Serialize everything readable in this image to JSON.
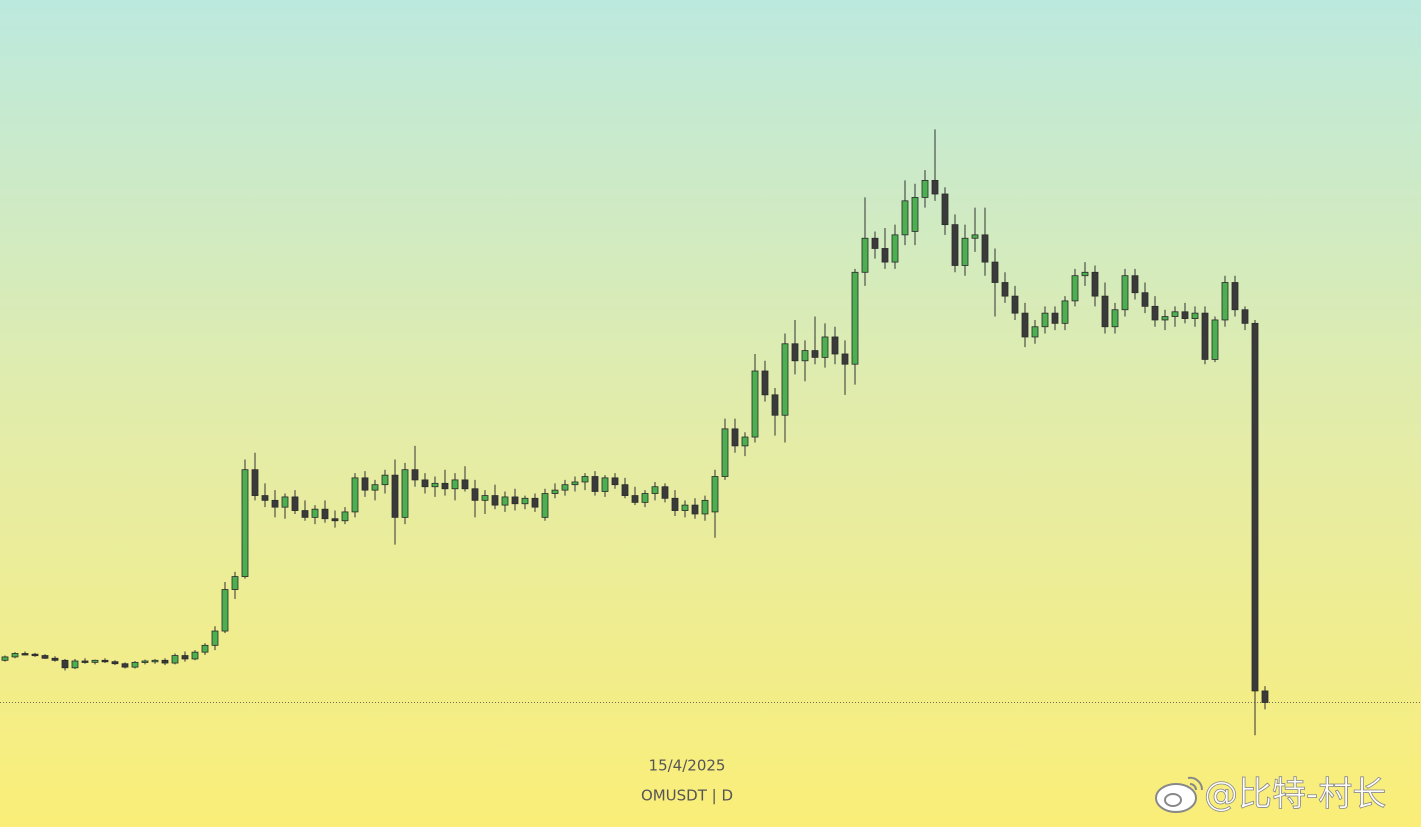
{
  "chart_data": {
    "type": "candlestick",
    "ylim": [
      0,
      10.9
    ],
    "up_color": "#4caf50",
    "down_color": "#3a3a3a",
    "date_label": "15/4/2025",
    "symbol_label": "OMUSDT | D",
    "watermark": "@比特-村长",
    "ohlc": [
      [
        1.2,
        1.27,
        1.18,
        1.25
      ],
      [
        1.25,
        1.32,
        1.23,
        1.3
      ],
      [
        1.3,
        1.33,
        1.27,
        1.29
      ],
      [
        1.29,
        1.31,
        1.25,
        1.27
      ],
      [
        1.27,
        1.29,
        1.22,
        1.23
      ],
      [
        1.23,
        1.26,
        1.18,
        1.2
      ],
      [
        1.2,
        1.22,
        1.05,
        1.09
      ],
      [
        1.09,
        1.22,
        1.07,
        1.19
      ],
      [
        1.19,
        1.23,
        1.15,
        1.17
      ],
      [
        1.17,
        1.21,
        1.14,
        1.2
      ],
      [
        1.2,
        1.23,
        1.16,
        1.18
      ],
      [
        1.18,
        1.2,
        1.13,
        1.15
      ],
      [
        1.15,
        1.17,
        1.08,
        1.1
      ],
      [
        1.1,
        1.19,
        1.08,
        1.17
      ],
      [
        1.17,
        1.21,
        1.14,
        1.19
      ],
      [
        1.19,
        1.22,
        1.15,
        1.2
      ],
      [
        1.2,
        1.23,
        1.13,
        1.16
      ],
      [
        1.16,
        1.3,
        1.14,
        1.27
      ],
      [
        1.27,
        1.33,
        1.18,
        1.22
      ],
      [
        1.22,
        1.35,
        1.2,
        1.32
      ],
      [
        1.32,
        1.45,
        1.28,
        1.42
      ],
      [
        1.42,
        1.7,
        1.35,
        1.63
      ],
      [
        1.63,
        2.35,
        1.6,
        2.24
      ],
      [
        2.24,
        2.5,
        2.1,
        2.43
      ],
      [
        2.43,
        4.15,
        2.4,
        4.0
      ],
      [
        4.0,
        4.25,
        3.55,
        3.62
      ],
      [
        3.62,
        3.8,
        3.45,
        3.55
      ],
      [
        3.55,
        3.7,
        3.3,
        3.45
      ],
      [
        3.45,
        3.65,
        3.28,
        3.6
      ],
      [
        3.6,
        3.7,
        3.35,
        3.4
      ],
      [
        3.4,
        3.55,
        3.25,
        3.3
      ],
      [
        3.3,
        3.48,
        3.2,
        3.42
      ],
      [
        3.42,
        3.55,
        3.22,
        3.28
      ],
      [
        3.28,
        3.4,
        3.15,
        3.25
      ],
      [
        3.25,
        3.45,
        3.2,
        3.38
      ],
      [
        3.38,
        3.95,
        3.3,
        3.88
      ],
      [
        3.88,
        3.98,
        3.6,
        3.7
      ],
      [
        3.7,
        3.85,
        3.55,
        3.78
      ],
      [
        3.78,
        4.0,
        3.65,
        3.92
      ],
      [
        3.92,
        4.15,
        2.9,
        3.3
      ],
      [
        3.3,
        4.1,
        3.2,
        4.0
      ],
      [
        4.0,
        4.35,
        3.75,
        3.85
      ],
      [
        3.85,
        3.95,
        3.65,
        3.75
      ],
      [
        3.75,
        3.9,
        3.6,
        3.8
      ],
      [
        3.8,
        4.0,
        3.62,
        3.72
      ],
      [
        3.72,
        3.95,
        3.55,
        3.85
      ],
      [
        3.85,
        4.05,
        3.68,
        3.72
      ],
      [
        3.72,
        3.85,
        3.3,
        3.55
      ],
      [
        3.55,
        3.7,
        3.35,
        3.62
      ],
      [
        3.62,
        3.78,
        3.42,
        3.48
      ],
      [
        3.48,
        3.68,
        3.38,
        3.6
      ],
      [
        3.6,
        3.72,
        3.4,
        3.5
      ],
      [
        3.5,
        3.62,
        3.42,
        3.58
      ],
      [
        3.58,
        3.65,
        3.38,
        3.45
      ],
      [
        3.3,
        3.72,
        3.25,
        3.65
      ],
      [
        3.65,
        3.8,
        3.58,
        3.7
      ],
      [
        3.7,
        3.85,
        3.62,
        3.78
      ],
      [
        3.78,
        3.9,
        3.68,
        3.82
      ],
      [
        3.82,
        3.95,
        3.7,
        3.9
      ],
      [
        3.9,
        3.98,
        3.62,
        3.68
      ],
      [
        3.68,
        3.92,
        3.6,
        3.88
      ],
      [
        3.88,
        3.95,
        3.72,
        3.78
      ],
      [
        3.78,
        3.88,
        3.58,
        3.62
      ],
      [
        3.62,
        3.75,
        3.48,
        3.52
      ],
      [
        3.52,
        3.7,
        3.45,
        3.65
      ],
      [
        3.65,
        3.82,
        3.55,
        3.75
      ],
      [
        3.75,
        3.8,
        3.52,
        3.58
      ],
      [
        3.58,
        3.7,
        3.32,
        3.4
      ],
      [
        3.4,
        3.55,
        3.3,
        3.48
      ],
      [
        3.48,
        3.58,
        3.28,
        3.35
      ],
      [
        3.35,
        3.62,
        3.25,
        3.55
      ],
      [
        3.38,
        4.0,
        3.0,
        3.9
      ],
      [
        3.9,
        4.75,
        3.85,
        4.6
      ],
      [
        4.6,
        4.75,
        4.25,
        4.35
      ],
      [
        4.35,
        4.55,
        4.2,
        4.48
      ],
      [
        4.48,
        5.7,
        4.4,
        5.45
      ],
      [
        5.45,
        5.6,
        5.0,
        5.1
      ],
      [
        5.1,
        5.2,
        4.5,
        4.8
      ],
      [
        4.8,
        6.0,
        4.4,
        5.85
      ],
      [
        5.85,
        6.2,
        5.4,
        5.6
      ],
      [
        5.6,
        5.9,
        5.3,
        5.75
      ],
      [
        5.75,
        6.25,
        5.55,
        5.65
      ],
      [
        5.65,
        6.15,
        5.5,
        5.95
      ],
      [
        5.95,
        6.1,
        5.55,
        5.7
      ],
      [
        5.7,
        5.9,
        5.1,
        5.55
      ],
      [
        5.55,
        6.95,
        5.25,
        6.9
      ],
      [
        6.9,
        8.0,
        6.7,
        7.4
      ],
      [
        7.4,
        7.5,
        7.1,
        7.25
      ],
      [
        7.25,
        7.55,
        6.95,
        7.05
      ],
      [
        7.05,
        7.6,
        6.95,
        7.45
      ],
      [
        7.45,
        8.25,
        7.3,
        7.95
      ],
      [
        7.5,
        8.2,
        7.3,
        8.0
      ],
      [
        8.0,
        8.4,
        7.85,
        8.25
      ],
      [
        8.25,
        9.0,
        7.95,
        8.05
      ],
      [
        8.05,
        8.15,
        7.45,
        7.6
      ],
      [
        7.6,
        7.75,
        6.9,
        7.0
      ],
      [
        7.0,
        7.6,
        6.85,
        7.4
      ],
      [
        7.4,
        7.85,
        7.2,
        7.45
      ],
      [
        7.45,
        7.85,
        6.85,
        7.05
      ],
      [
        7.05,
        7.25,
        6.25,
        6.75
      ],
      [
        6.75,
        6.9,
        6.45,
        6.55
      ],
      [
        6.55,
        6.7,
        6.2,
        6.3
      ],
      [
        6.3,
        6.45,
        5.8,
        5.95
      ],
      [
        5.95,
        6.2,
        5.85,
        6.1
      ],
      [
        6.1,
        6.4,
        6.0,
        6.3
      ],
      [
        6.3,
        6.4,
        6.05,
        6.15
      ],
      [
        6.15,
        6.55,
        6.05,
        6.48
      ],
      [
        6.48,
        6.95,
        6.4,
        6.85
      ],
      [
        6.85,
        7.05,
        6.7,
        6.9
      ],
      [
        6.9,
        7.0,
        6.4,
        6.55
      ],
      [
        6.55,
        6.75,
        6.0,
        6.1
      ],
      [
        6.1,
        6.45,
        6.0,
        6.35
      ],
      [
        6.35,
        6.95,
        6.25,
        6.85
      ],
      [
        6.85,
        6.95,
        6.5,
        6.6
      ],
      [
        6.6,
        6.75,
        6.3,
        6.4
      ],
      [
        6.4,
        6.55,
        6.1,
        6.2
      ],
      [
        6.2,
        6.35,
        6.05,
        6.25
      ],
      [
        6.25,
        6.4,
        6.1,
        6.32
      ],
      [
        6.32,
        6.45,
        6.15,
        6.22
      ],
      [
        6.22,
        6.4,
        6.1,
        6.3
      ],
      [
        6.3,
        6.4,
        5.55,
        5.62
      ],
      [
        5.62,
        6.25,
        5.58,
        6.2
      ],
      [
        6.2,
        6.85,
        6.1,
        6.75
      ],
      [
        6.75,
        6.85,
        6.25,
        6.35
      ],
      [
        6.35,
        6.4,
        6.05,
        6.15
      ],
      [
        6.15,
        6.2,
        0.1,
        0.75
      ],
      [
        0.75,
        0.82,
        0.48,
        0.58
      ]
    ]
  }
}
